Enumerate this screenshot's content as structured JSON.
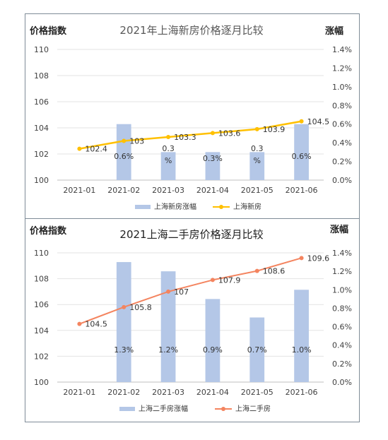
{
  "chart_data": [
    {
      "type": "bar+line",
      "title": "2021年上海新房价格逐月比较",
      "left_axis_label": "价格指数",
      "right_axis_label": "涨幅",
      "categories": [
        "2021-01",
        "2021-02",
        "2021-03",
        "2021-04",
        "2021-05",
        "2021-06"
      ],
      "left_ticks": [
        "110",
        "108",
        "106",
        "104",
        "102",
        "100"
      ],
      "right_ticks": [
        "1.4%",
        "1.2%",
        "1.0%",
        "0.8%",
        "0.6%",
        "0.4%",
        "0.2%",
        "0.0%"
      ],
      "ylim_left": [
        100,
        110
      ],
      "ylim_right": [
        0,
        1.4
      ],
      "bar_series": {
        "name": "上海新房涨幅",
        "values": [
          null,
          0.6,
          0.3,
          0.3,
          0.3,
          0.6
        ],
        "labels": [
          "",
          "0.6%",
          "0.3 %",
          "0.3%",
          "0.3 %",
          "0.6%"
        ],
        "color": "#b4c7e7"
      },
      "line_series": {
        "name": "上海新房",
        "values": [
          102.4,
          103,
          103.3,
          103.6,
          103.9,
          104.5
        ],
        "labels": [
          "102.4",
          "103",
          "103.3",
          "103.6",
          "103.9",
          "104.5"
        ],
        "color": "#ffc000"
      },
      "grid": true,
      "legend": "bottom"
    },
    {
      "type": "bar+line",
      "title": "2021上海二手房价格逐月比较",
      "left_axis_label": "价格指数",
      "right_axis_label": "涨幅",
      "categories": [
        "2021-01",
        "2021-02",
        "2021-03",
        "2021-04",
        "2021-05",
        "2021-06"
      ],
      "left_ticks": [
        "110",
        "108",
        "106",
        "104",
        "102",
        "100"
      ],
      "right_ticks": [
        "1.4%",
        "1.2%",
        "1.0%",
        "0.8%",
        "0.6%",
        "0.4%",
        "0.2%",
        "0.0%"
      ],
      "ylim_left": [
        100,
        110
      ],
      "ylim_right": [
        0,
        1.4
      ],
      "bar_series": {
        "name": "上海二手房涨幅",
        "values": [
          null,
          1.3,
          1.2,
          0.9,
          0.7,
          1.0
        ],
        "labels": [
          "",
          "1.3%",
          "1.2%",
          "0.9%",
          "0.7%",
          "1.0%"
        ],
        "color": "#b4c7e7"
      },
      "line_series": {
        "name": "上海二手房",
        "values": [
          104.5,
          105.8,
          107,
          107.9,
          108.6,
          109.6
        ],
        "labels": [
          "104.5",
          "105.8",
          "107",
          "107.9",
          "108.6",
          "109.6"
        ],
        "color": "#f4845f"
      },
      "grid": true,
      "legend": "bottom"
    }
  ]
}
